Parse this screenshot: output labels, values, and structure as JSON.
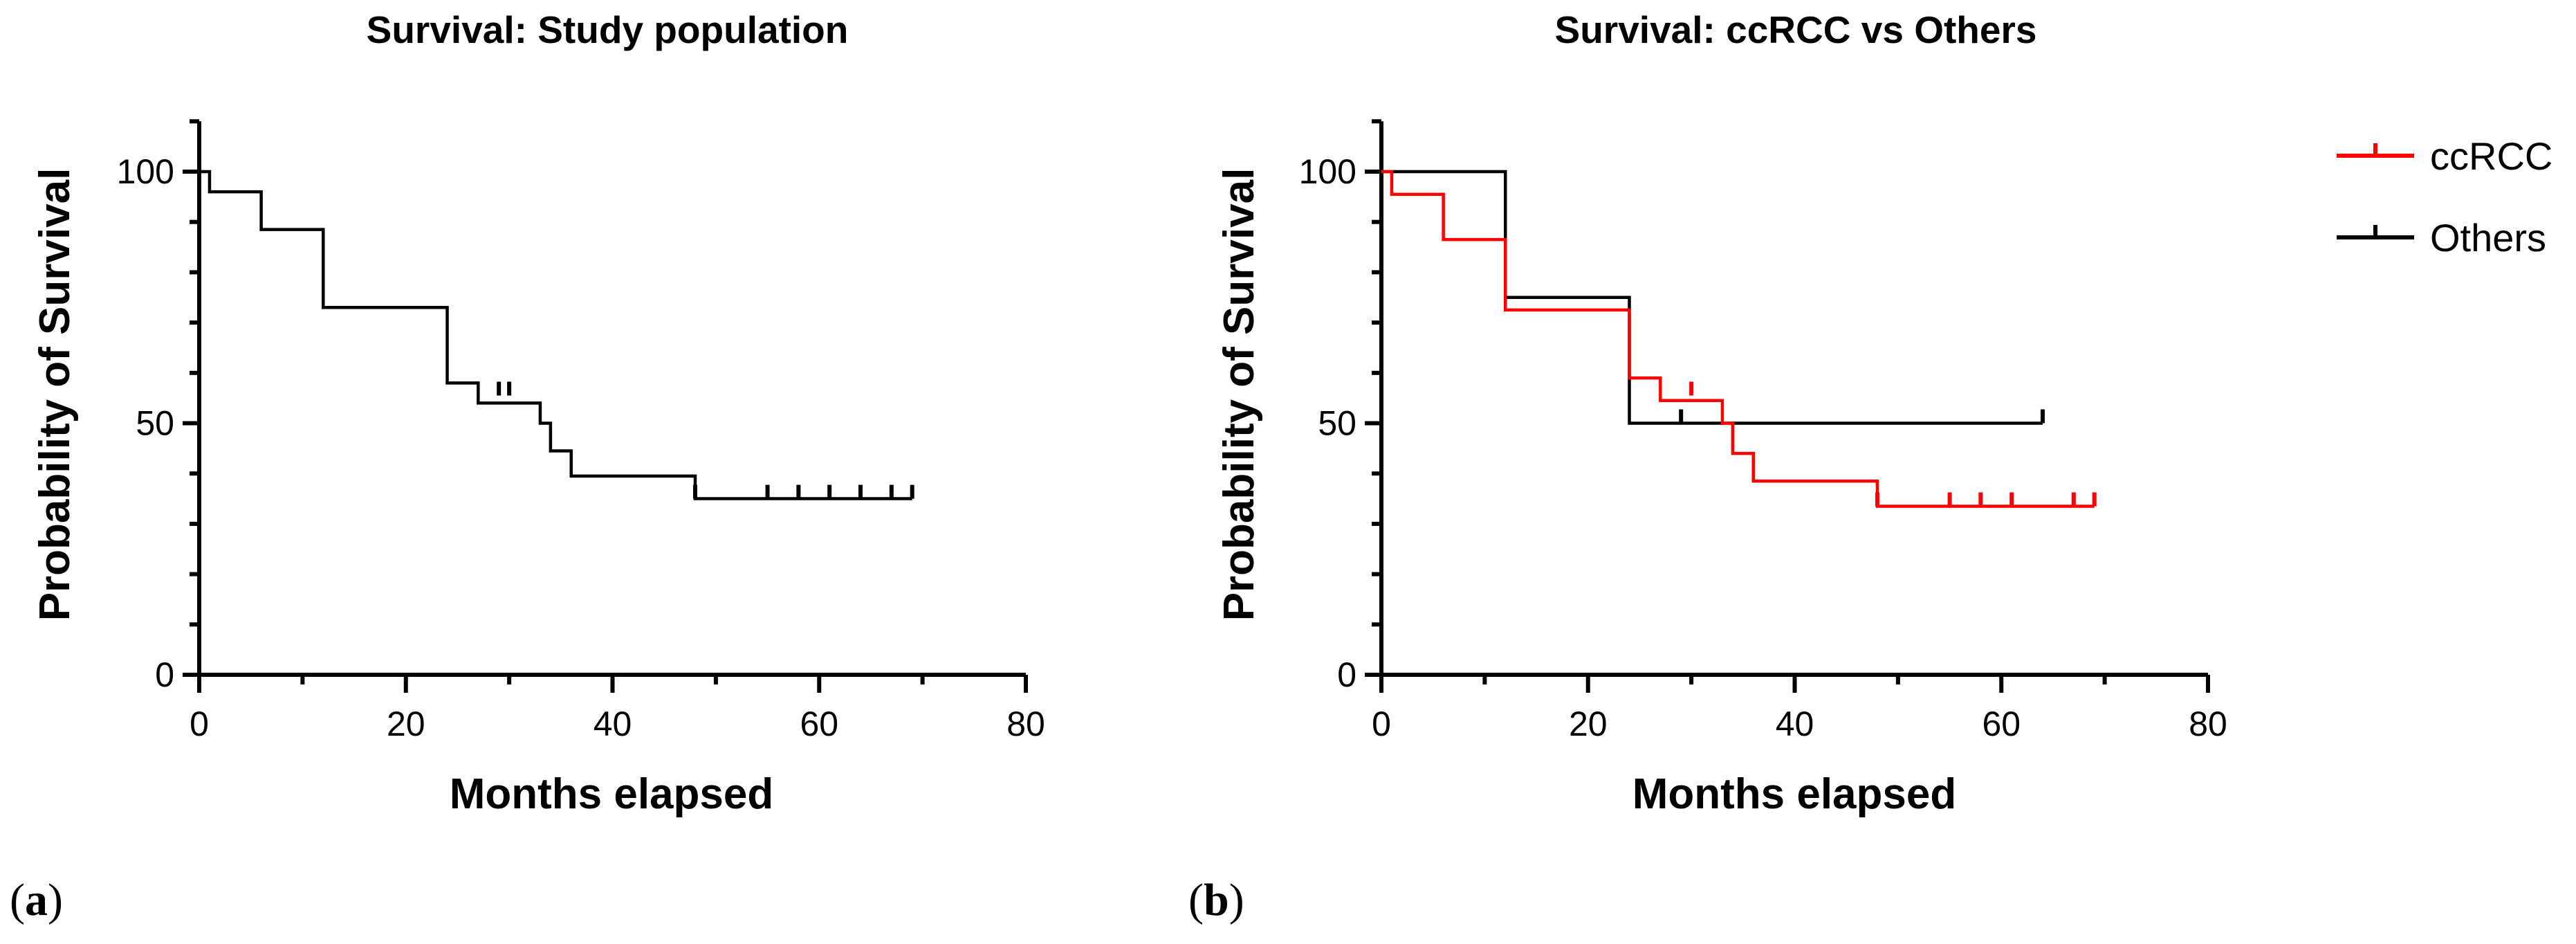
{
  "colors": {
    "ccrcc": "#ff0000",
    "others": "#000000",
    "overall": "#000000"
  },
  "panels": [
    {
      "label_open": "(",
      "label_letter": "a",
      "label_close": ")"
    },
    {
      "label_open": "(",
      "label_letter": "b",
      "label_close": ")"
    }
  ],
  "chart_data": [
    {
      "type": "line",
      "subtype": "kaplan-meier step",
      "title": "Survival: Study population",
      "xlabel": "Months elapsed",
      "ylabel": "Probability of Survival",
      "xlim": [
        0,
        80
      ],
      "ylim": [
        0,
        110
      ],
      "xticks": [
        "0",
        "20",
        "40",
        "60",
        "80"
      ],
      "yticks": [
        "0",
        "50",
        "100"
      ],
      "grid": false,
      "series": [
        {
          "color": "#000000",
          "steps": [
            [
              0,
              100
            ],
            [
              1,
              96
            ],
            [
              6,
              88.5
            ],
            [
              12,
              73
            ],
            [
              24,
              58
            ],
            [
              27,
              54
            ],
            [
              33,
              50
            ],
            [
              34,
              44.5
            ],
            [
              36,
              39.5
            ],
            [
              48,
              35
            ],
            [
              69,
              35
            ]
          ],
          "censored": [
            [
              29,
              55.5
            ],
            [
              30,
              55.5
            ],
            [
              48,
              35
            ],
            [
              55,
              35
            ],
            [
              58,
              35
            ],
            [
              61,
              35
            ],
            [
              64,
              35
            ],
            [
              67,
              35
            ],
            [
              69,
              35
            ]
          ]
        }
      ]
    },
    {
      "type": "line",
      "subtype": "kaplan-meier step",
      "title": "Survival: ccRCC vs Others",
      "xlabel": "Months elapsed",
      "ylabel": "Probability of Survival",
      "xlim": [
        0,
        80
      ],
      "ylim": [
        0,
        110
      ],
      "xticks": [
        "0",
        "20",
        "40",
        "60",
        "80"
      ],
      "yticks": [
        "0",
        "50",
        "100"
      ],
      "grid": false,
      "legend": "right",
      "series": [
        {
          "name": "ccRCC",
          "color": "#ff0000",
          "steps": [
            [
              0,
              100
            ],
            [
              1,
              95.5
            ],
            [
              6,
              86.5
            ],
            [
              12,
              72.5
            ],
            [
              24,
              59
            ],
            [
              27,
              54.5
            ],
            [
              33,
              50
            ],
            [
              34,
              44
            ],
            [
              36,
              38.5
            ],
            [
              48,
              33.5
            ],
            [
              69,
              33.5
            ]
          ],
          "censored": [
            [
              30,
              55.5
            ],
            [
              48,
              33.5
            ],
            [
              55,
              33.5
            ],
            [
              58,
              33.5
            ],
            [
              61,
              33.5
            ],
            [
              67,
              33.5
            ],
            [
              69,
              33.5
            ]
          ]
        },
        {
          "name": "Others",
          "color": "#000000",
          "steps": [
            [
              0,
              100
            ],
            [
              12,
              75
            ],
            [
              24,
              50
            ],
            [
              64,
              50
            ]
          ],
          "censored": [
            [
              29,
              50
            ],
            [
              64,
              50
            ]
          ]
        }
      ]
    }
  ]
}
